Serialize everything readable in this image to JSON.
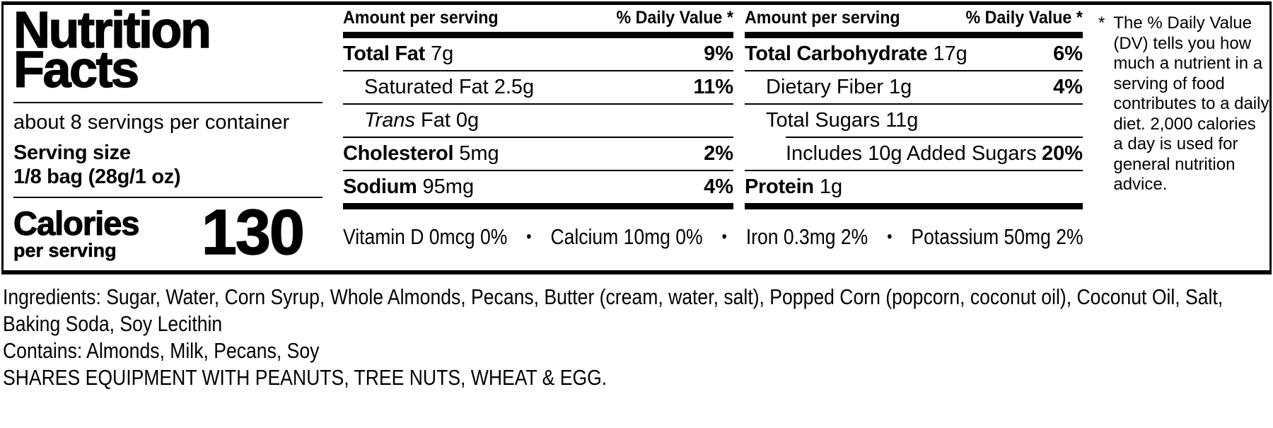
{
  "label": {
    "title_line1": "Nutrition",
    "title_line2": "Facts",
    "servings_per_container": "about 8 servings per container",
    "serving_size_label": "Serving size",
    "serving_size_value": "1/8 bag (28g/1 oz)",
    "calories_label": "Calories",
    "calories_sub": "per serving",
    "calories_value": "130",
    "column_header_left": "Amount per serving",
    "column_header_right": "% Daily Value *",
    "columns": [
      {
        "rows": [
          {
            "name": "Total Fat",
            "amount": "7g",
            "dv": "9%"
          },
          {
            "name": "Saturated Fat",
            "amount": "2.5g",
            "dv": "11%"
          },
          {
            "name_italic": "Trans",
            "name": "Fat",
            "amount": "0g",
            "dv": ""
          },
          {
            "name": "Cholesterol",
            "amount": "5mg",
            "dv": "2%"
          },
          {
            "name": "Sodium",
            "amount": "95mg",
            "dv": "4%"
          }
        ]
      },
      {
        "rows": [
          {
            "name": "Total Carbohydrate",
            "amount": "17g",
            "dv": "6%"
          },
          {
            "name": "Dietary Fiber",
            "amount": "1g",
            "dv": "4%"
          },
          {
            "name": "Total Sugars",
            "amount": "11g",
            "dv": ""
          },
          {
            "name": "Includes 10g Added Sugars",
            "amount": "",
            "dv": "20%"
          },
          {
            "name": "Protein",
            "amount": "1g",
            "dv": ""
          }
        ]
      }
    ],
    "micronutrients": [
      "Vitamin D 0mcg 0%",
      "Calcium 10mg 0%",
      "Iron 0.3mg 2%",
      "Potassium 50mg 2%"
    ],
    "micronutrient_separator": "•",
    "footnote_symbol": "*",
    "footnote": "The % Daily Value (DV) tells you how much a nutrient in a serving of food contributes to a daily diet. 2,000 calories a day is used for general nutrition advice."
  },
  "below": {
    "ingredients": "Ingredients: Sugar, Water, Corn Syrup, Whole Almonds, Pecans, Butter (cream, water, salt), Popped Corn (popcorn, coconut oil), Coconut Oil, Salt, Baking Soda, Soy Lecithin",
    "contains": "Contains: Almonds, Milk, Pecans, Soy",
    "allergen_warning": "SHARES EQUIPMENT WITH PEANUTS, TREE NUTS, WHEAT & EGG."
  },
  "colors": {
    "text": "#000000",
    "background": "#ffffff"
  }
}
